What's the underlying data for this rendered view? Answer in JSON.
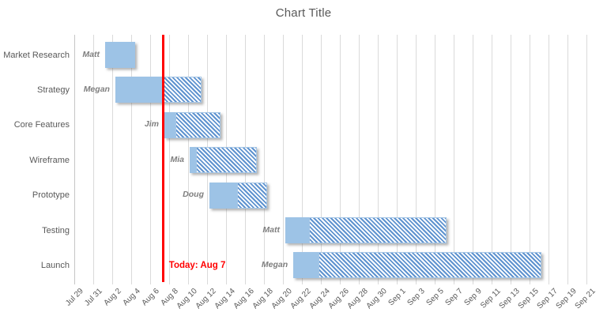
{
  "chart_data": {
    "type": "bar",
    "subtype": "gantt",
    "title": "Chart Title",
    "legend": null,
    "today_line": {
      "label": "Today: Aug 7",
      "day_offset": 9.4,
      "color": "#FF0000"
    },
    "x_axis": {
      "origin_label": "Jul 29",
      "days_per_tick": 2,
      "total_days": 54,
      "grid": true,
      "tick_labels": [
        "Jul 29",
        "Jul 31",
        "Aug 2",
        "Aug 4",
        "Aug 6",
        "Aug 8",
        "Aug 10",
        "Aug 12",
        "Aug 14",
        "Aug 16",
        "Aug 18",
        "Aug 20",
        "Aug 22",
        "Aug 24",
        "Aug 26",
        "Aug 28",
        "Aug 30",
        "Sep 1",
        "Sep 3",
        "Sep 5",
        "Sep 7",
        "Sep 9",
        "Sep 11",
        "Sep 13",
        "Sep 15",
        "Sep 17",
        "Sep 19",
        "Sep 21"
      ]
    },
    "tasks": [
      {
        "name": "Market Research",
        "assignee": "Matt",
        "start_day": 3.25,
        "complete_day": 6.42,
        "end_day": 6.42,
        "start_date": "Aug 1",
        "end_date": "Aug 4"
      },
      {
        "name": "Strategy",
        "assignee": "Megan",
        "start_day": 4.33,
        "complete_day": 9.4,
        "end_day": 13.4,
        "start_date": "Aug 2",
        "end_date": "Aug 11"
      },
      {
        "name": "Core Features",
        "assignee": "Jim",
        "start_day": 9.5,
        "complete_day": 10.67,
        "end_day": 15.42,
        "start_date": "Aug 7",
        "end_date": "Aug 13"
      },
      {
        "name": "Wireframe",
        "assignee": "Mia",
        "start_day": 12.17,
        "complete_day": 12.83,
        "end_day": 19.25,
        "start_date": "Aug 10",
        "end_date": "Aug 17"
      },
      {
        "name": "Prototype",
        "assignee": "Doug",
        "start_day": 14.25,
        "complete_day": 17.17,
        "end_day": 20.33,
        "start_date": "Aug 12",
        "end_date": "Aug 18"
      },
      {
        "name": "Testing",
        "assignee": "Matt",
        "start_day": 22.25,
        "complete_day": 24.78,
        "end_day": 39.25,
        "start_date": "Aug 20",
        "end_date": "Sep 6"
      },
      {
        "name": "Launch",
        "assignee": "Megan",
        "start_day": 23.1,
        "complete_day": 25.75,
        "end_day": 49.25,
        "start_date": "Aug 21",
        "end_date": "Sep 16"
      }
    ],
    "colors": {
      "bar_complete": "#9DC3E6",
      "bar_remaining_hatch": "#5F93CF",
      "bar_remaining_bg": "#FFFFFF",
      "gridline": "#DADADA",
      "title_text": "#595959",
      "task_text": "#595959",
      "assignee_text": "#7F7F7F",
      "today": "#FF0000"
    }
  }
}
